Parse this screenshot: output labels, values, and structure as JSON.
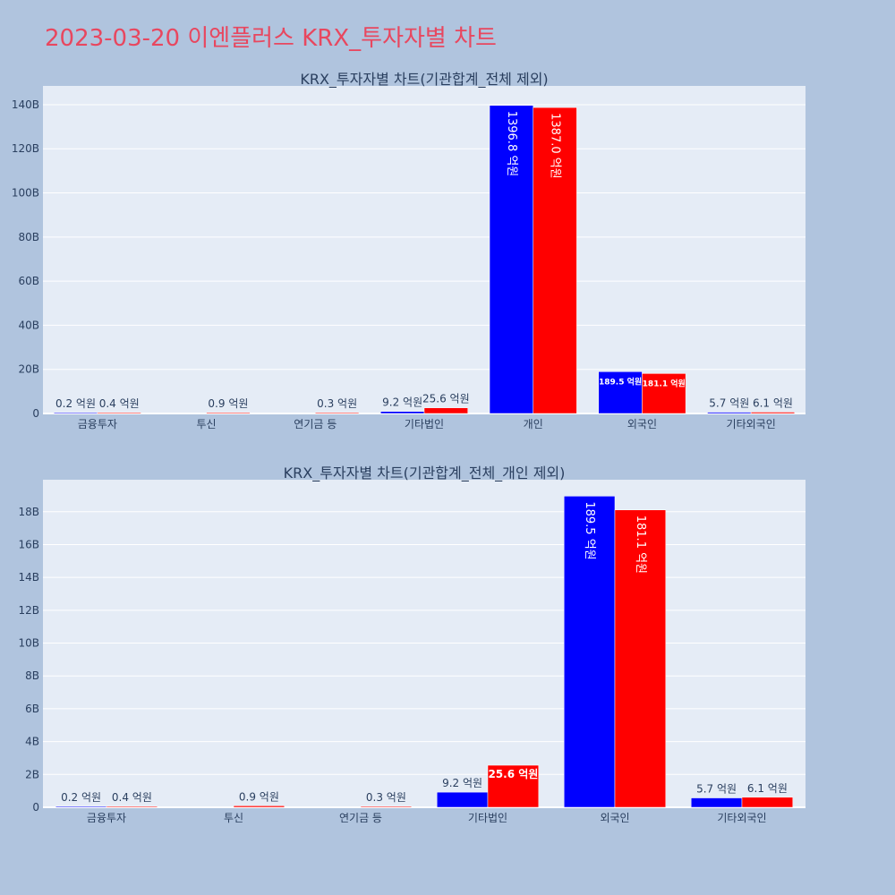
{
  "page_title": "2023-03-20 이엔플러스 KRX_투자자별 차트",
  "colors": {
    "background": "#b0c4de",
    "plot_bg": "#e5ecf6",
    "buy": "#0000ff",
    "sell": "#ff0000",
    "title": "#e8475f"
  },
  "chart_data": [
    {
      "type": "bar",
      "title": "KRX_투자자별 차트(기관합계_전체 제외)",
      "categories": [
        "금융투자",
        "투신",
        "연기금 등",
        "기타법인",
        "개인",
        "외국인",
        "기타외국인"
      ],
      "series": [
        {
          "color": "#0000ff",
          "values": [
            20000000,
            null,
            null,
            920000000,
            139680000000,
            18950000000,
            570000000
          ],
          "labels": [
            "0.2 억원",
            "",
            "",
            "9.2 억원",
            "1396.8 억원",
            "189.5 억원",
            "5.7 억원"
          ]
        },
        {
          "color": "#ff0000",
          "values": [
            40000000,
            90000000,
            30000000,
            2560000000,
            138700000000,
            18110000000,
            610000000
          ],
          "labels": [
            "0.4 억원",
            "0.9 억원",
            "0.3 억원",
            "25.6 억원",
            "1387.0 억원",
            "181.1 억원",
            "6.1 억원"
          ]
        }
      ],
      "yticks": [
        0,
        20000000000,
        40000000000,
        60000000000,
        80000000000,
        100000000000,
        120000000000,
        140000000000
      ],
      "ytick_labels": [
        "0",
        "20B",
        "40B",
        "60B",
        "80B",
        "100B",
        "120B",
        "140B"
      ],
      "ylim": [
        0,
        148500000000
      ],
      "grid": true
    },
    {
      "type": "bar",
      "title": "KRX_투자자별 차트(기관합계_전체_개인 제외)",
      "categories": [
        "금융투자",
        "투신",
        "연기금 등",
        "기타법인",
        "외국인",
        "기타외국인"
      ],
      "series": [
        {
          "color": "#0000ff",
          "values": [
            20000000,
            null,
            null,
            920000000,
            18950000000,
            570000000
          ],
          "labels": [
            "0.2 억원",
            "",
            "",
            "9.2 억원",
            "189.5 억원",
            "5.7 억원"
          ]
        },
        {
          "color": "#ff0000",
          "values": [
            40000000,
            90000000,
            30000000,
            2560000000,
            18110000000,
            610000000
          ],
          "labels": [
            "0.4 억원",
            "0.9 억원",
            "0.3 억원",
            "25.6 억원",
            "181.1 억원",
            "6.1 억원"
          ]
        }
      ],
      "yticks": [
        0,
        2000000000,
        4000000000,
        6000000000,
        8000000000,
        10000000000,
        12000000000,
        14000000000,
        16000000000,
        18000000000
      ],
      "ytick_labels": [
        "0",
        "2B",
        "4B",
        "6B",
        "8B",
        "10B",
        "12B",
        "14B",
        "16B",
        "18B"
      ],
      "ylim": [
        0,
        19950000000
      ],
      "grid": true
    }
  ]
}
